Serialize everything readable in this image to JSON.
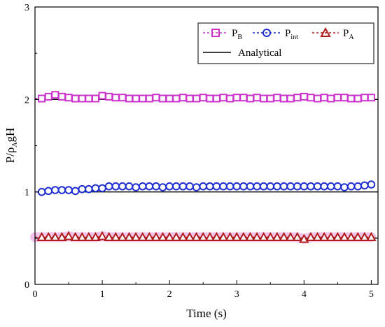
{
  "colors": {
    "p_b": "#cc33cc",
    "p_int": "#1f2fd0",
    "p_a": "#b01c1c",
    "analytical": "#000000",
    "p_a_halo": "#f2b8e6"
  },
  "chart_data": {
    "type": "line",
    "xlabel": "Time (s)",
    "ylabel": {
      "main": "P/ρ",
      "sub": "A",
      "tail": "gH"
    },
    "xlim": [
      0,
      5.1
    ],
    "ylim": [
      0,
      3
    ],
    "xticks": [
      "0",
      "1",
      "2",
      "3",
      "4",
      "5"
    ],
    "yticks": [
      "0",
      "1",
      "2",
      "3"
    ],
    "grid": false,
    "legend_position": "top-right",
    "legend": {
      "p_b": {
        "main": "P",
        "sub": "B"
      },
      "p_int": {
        "main": "P",
        "sub": "int"
      },
      "p_a": {
        "main": "P",
        "sub": "A"
      },
      "analytical": "Analytical"
    },
    "x": [
      0.1,
      0.2,
      0.3,
      0.4,
      0.5,
      0.6,
      0.7,
      0.8,
      0.9,
      1.0,
      1.1,
      1.2,
      1.3,
      1.4,
      1.5,
      1.6,
      1.7,
      1.8,
      1.9,
      2.0,
      2.1,
      2.2,
      2.3,
      2.4,
      2.5,
      2.6,
      2.7,
      2.8,
      2.9,
      3.0,
      3.1,
      3.2,
      3.3,
      3.4,
      3.5,
      3.6,
      3.7,
      3.8,
      3.9,
      4.0,
      4.1,
      4.2,
      4.3,
      4.4,
      4.5,
      4.6,
      4.7,
      4.8,
      4.9,
      5.0
    ],
    "series": [
      {
        "name": "P_B",
        "marker": "square",
        "values": [
          2.01,
          2.03,
          2.05,
          2.03,
          2.02,
          2.01,
          2.01,
          2.01,
          2.01,
          2.04,
          2.03,
          2.02,
          2.02,
          2.01,
          2.01,
          2.01,
          2.01,
          2.02,
          2.01,
          2.01,
          2.01,
          2.02,
          2.01,
          2.01,
          2.02,
          2.01,
          2.01,
          2.02,
          2.01,
          2.02,
          2.02,
          2.01,
          2.02,
          2.01,
          2.01,
          2.02,
          2.01,
          2.01,
          2.02,
          2.03,
          2.02,
          2.01,
          2.02,
          2.01,
          2.02,
          2.02,
          2.01,
          2.01,
          2.02,
          2.02
        ]
      },
      {
        "name": "P_int",
        "marker": "circle",
        "values": [
          1.0,
          1.01,
          1.02,
          1.02,
          1.02,
          1.01,
          1.03,
          1.03,
          1.04,
          1.04,
          1.06,
          1.06,
          1.06,
          1.06,
          1.05,
          1.06,
          1.06,
          1.06,
          1.05,
          1.06,
          1.06,
          1.06,
          1.06,
          1.05,
          1.06,
          1.06,
          1.06,
          1.06,
          1.06,
          1.06,
          1.06,
          1.06,
          1.06,
          1.06,
          1.06,
          1.06,
          1.06,
          1.06,
          1.06,
          1.06,
          1.06,
          1.06,
          1.06,
          1.06,
          1.06,
          1.05,
          1.06,
          1.06,
          1.07,
          1.08
        ]
      },
      {
        "name": "P_A",
        "marker": "triangle",
        "values": [
          0.51,
          0.51,
          0.51,
          0.51,
          0.52,
          0.51,
          0.51,
          0.51,
          0.51,
          0.52,
          0.51,
          0.51,
          0.51,
          0.51,
          0.51,
          0.51,
          0.51,
          0.51,
          0.51,
          0.51,
          0.51,
          0.51,
          0.51,
          0.51,
          0.51,
          0.51,
          0.51,
          0.51,
          0.51,
          0.51,
          0.51,
          0.51,
          0.51,
          0.51,
          0.51,
          0.51,
          0.51,
          0.51,
          0.51,
          0.49,
          0.51,
          0.51,
          0.51,
          0.51,
          0.51,
          0.51,
          0.51,
          0.51,
          0.51,
          0.51
        ]
      }
    ],
    "analytical_lines": [
      {
        "name": "Analytical P_B",
        "y": 2.0
      },
      {
        "name": "Analytical P_int",
        "y": 1.0
      },
      {
        "name": "Analytical P_A",
        "y": 0.5
      }
    ]
  }
}
